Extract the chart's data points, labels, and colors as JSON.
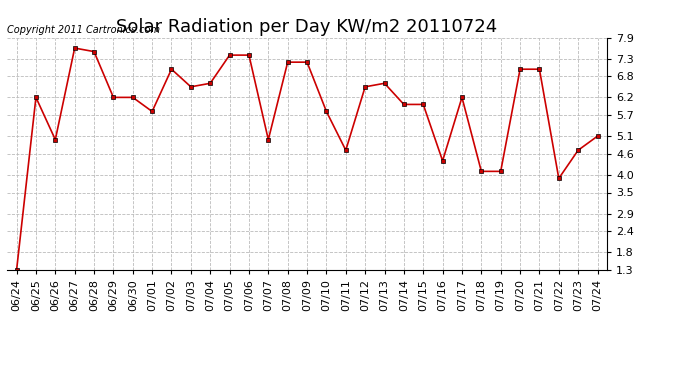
{
  "title": "Solar Radiation per Day KW/m2 20110724",
  "copyright_text": "Copyright 2011 Cartronics.com",
  "dates": [
    "06/24",
    "06/25",
    "06/26",
    "06/27",
    "06/28",
    "06/29",
    "06/30",
    "07/01",
    "07/02",
    "07/03",
    "07/04",
    "07/05",
    "07/06",
    "07/07",
    "07/08",
    "07/09",
    "07/10",
    "07/11",
    "07/12",
    "07/13",
    "07/14",
    "07/15",
    "07/16",
    "07/17",
    "07/18",
    "07/19",
    "07/20",
    "07/21",
    "07/22",
    "07/23",
    "07/24"
  ],
  "values": [
    1.3,
    6.2,
    5.0,
    7.6,
    7.5,
    6.2,
    6.2,
    5.8,
    7.0,
    6.5,
    6.6,
    7.4,
    7.4,
    5.0,
    7.2,
    7.2,
    5.8,
    4.7,
    6.5,
    6.6,
    6.0,
    6.0,
    4.4,
    6.2,
    4.1,
    4.1,
    7.0,
    7.0,
    3.9,
    4.7,
    5.1
  ],
  "line_color": "#cc0000",
  "marker_color": "#000000",
  "bg_color": "#ffffff",
  "grid_color": "#bbbbbb",
  "yticks": [
    1.3,
    1.8,
    2.4,
    2.9,
    3.5,
    4.0,
    4.6,
    5.1,
    5.7,
    6.2,
    6.8,
    7.3,
    7.9
  ],
  "ylim": [
    1.3,
    7.9
  ],
  "title_fontsize": 13,
  "tick_fontsize": 8,
  "copyright_fontsize": 7
}
